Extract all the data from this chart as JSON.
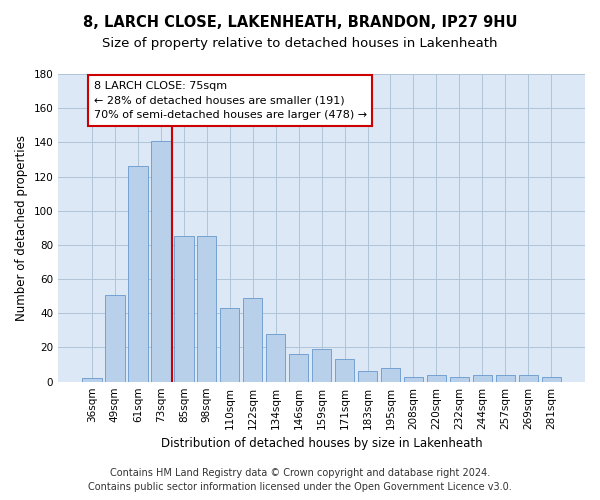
{
  "title_line1": "8, LARCH CLOSE, LAKENHEATH, BRANDON, IP27 9HU",
  "title_line2": "Size of property relative to detached houses in Lakenheath",
  "xlabel": "Distribution of detached houses by size in Lakenheath",
  "ylabel": "Number of detached properties",
  "categories": [
    "36sqm",
    "49sqm",
    "61sqm",
    "73sqm",
    "85sqm",
    "98sqm",
    "110sqm",
    "122sqm",
    "134sqm",
    "146sqm",
    "159sqm",
    "171sqm",
    "183sqm",
    "195sqm",
    "208sqm",
    "220sqm",
    "232sqm",
    "244sqm",
    "257sqm",
    "269sqm",
    "281sqm"
  ],
  "values": [
    2,
    51,
    126,
    141,
    85,
    85,
    43,
    49,
    28,
    16,
    19,
    13,
    6,
    8,
    3,
    4,
    3,
    4,
    4,
    4,
    3
  ],
  "bar_color": "#b8d0ea",
  "bar_edge_color": "#6699cc",
  "reference_line_color": "#cc0000",
  "reference_line_x": 3.5,
  "annotation_line1": "8 LARCH CLOSE: 75sqm",
  "annotation_line2": "← 28% of detached houses are smaller (191)",
  "annotation_line3": "70% of semi-detached houses are larger (478) →",
  "annotation_box_color": "#ffffff",
  "annotation_box_edge": "#cc0000",
  "ylim": [
    0,
    180
  ],
  "yticks": [
    0,
    20,
    40,
    60,
    80,
    100,
    120,
    140,
    160,
    180
  ],
  "footer1": "Contains HM Land Registry data © Crown copyright and database right 2024.",
  "footer2": "Contains public sector information licensed under the Open Government Licence v3.0.",
  "background_color": "#ffffff",
  "plot_bg_color": "#dce8f5",
  "grid_color": "#b0c4d8",
  "title1_fontsize": 10.5,
  "title2_fontsize": 9.5,
  "axis_label_fontsize": 8.5,
  "tick_fontsize": 7.5,
  "annotation_fontsize": 8,
  "footer_fontsize": 7
}
